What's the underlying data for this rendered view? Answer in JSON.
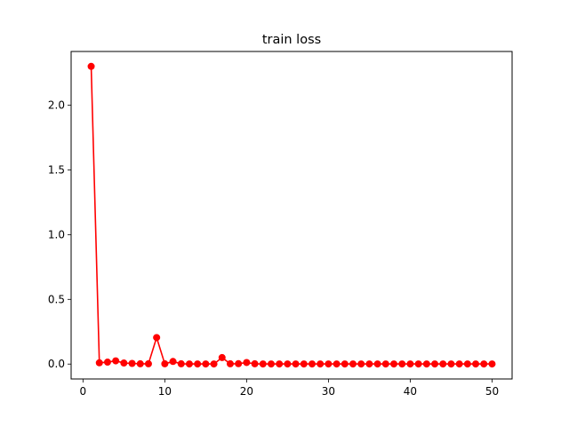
{
  "chart_data": {
    "type": "line",
    "title": "train loss",
    "xlabel": "",
    "ylabel": "",
    "xlim": [
      -1.45,
      52.45
    ],
    "ylim": [
      -0.115,
      2.415
    ],
    "xticks": [
      0,
      10,
      20,
      30,
      40,
      50
    ],
    "xtick_labels": [
      "0",
      "10",
      "20",
      "30",
      "40",
      "50"
    ],
    "yticks": [
      0.0,
      0.5,
      1.0,
      1.5,
      2.0
    ],
    "ytick_labels": [
      "0.0",
      "0.5",
      "1.0",
      "1.5",
      "2.0"
    ],
    "grid": false,
    "legend": null,
    "series": [
      {
        "name": "train loss",
        "color": "#ff0000",
        "marker": "circle",
        "x": [
          1,
          2,
          3,
          4,
          5,
          6,
          7,
          8,
          9,
          10,
          11,
          12,
          13,
          14,
          15,
          16,
          17,
          18,
          19,
          20,
          21,
          22,
          23,
          24,
          25,
          26,
          27,
          28,
          29,
          30,
          31,
          32,
          33,
          34,
          35,
          36,
          37,
          38,
          39,
          40,
          41,
          42,
          43,
          44,
          45,
          46,
          47,
          48,
          49,
          50
        ],
        "values": [
          2.3,
          0.01,
          0.015,
          0.025,
          0.008,
          0.005,
          0.002,
          0.002,
          0.205,
          0.002,
          0.02,
          0.002,
          0.001,
          0.001,
          0.001,
          0.001,
          0.05,
          0.002,
          0.003,
          0.012,
          0.002,
          0.001,
          0.001,
          0.001,
          0.001,
          0.001,
          0.001,
          0.001,
          0.001,
          0.001,
          0.001,
          0.001,
          0.001,
          0.001,
          0.001,
          0.001,
          0.001,
          0.001,
          0.001,
          0.001,
          0.001,
          0.001,
          0.001,
          0.001,
          0.001,
          0.001,
          0.001,
          0.001,
          0.001,
          0.001
        ]
      }
    ]
  }
}
